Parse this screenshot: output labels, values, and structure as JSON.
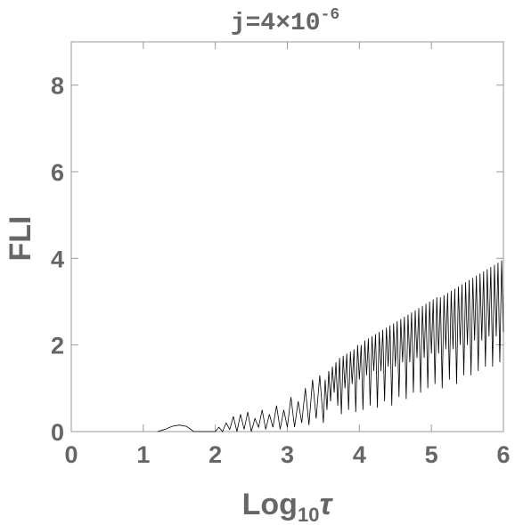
{
  "chart_data": {
    "type": "line",
    "title": "j=4×10",
    "title_superscript": "-6",
    "xlabel": "Log",
    "xlabel_subscript": "10",
    "xlabel_suffix": "τ",
    "ylabel": "FLI",
    "color": "#000000",
    "xlim": [
      0,
      6
    ],
    "ylim": [
      0,
      9
    ],
    "xticks": [
      0,
      1,
      2,
      3,
      4,
      5,
      6
    ],
    "yticks": [
      0,
      2,
      4,
      6,
      8
    ],
    "x": [
      1.2,
      1.3,
      1.4,
      1.5,
      1.6,
      1.7,
      1.8,
      1.9,
      2.0,
      2.05,
      2.1,
      2.15,
      2.2,
      2.25,
      2.3,
      2.35,
      2.4,
      2.45,
      2.5,
      2.55,
      2.6,
      2.65,
      2.7,
      2.75,
      2.8,
      2.85,
      2.9,
      2.95,
      3.0,
      3.05,
      3.1,
      3.15,
      3.2,
      3.25,
      3.3,
      3.35,
      3.4,
      3.45,
      3.5,
      3.525,
      3.55,
      3.575,
      3.6,
      3.625,
      3.65,
      3.675,
      3.7,
      3.725,
      3.75,
      3.775,
      3.8,
      3.825,
      3.85,
      3.875,
      3.9,
      3.925,
      3.95,
      3.975,
      4.0,
      4.025,
      4.05,
      4.075,
      4.1,
      4.125,
      4.15,
      4.175,
      4.2,
      4.225,
      4.25,
      4.275,
      4.3,
      4.325,
      4.35,
      4.375,
      4.4,
      4.425,
      4.45,
      4.475,
      4.5,
      4.525,
      4.55,
      4.575,
      4.6,
      4.625,
      4.65,
      4.675,
      4.7,
      4.725,
      4.75,
      4.775,
      4.8,
      4.825,
      4.85,
      4.875,
      4.9,
      4.925,
      4.95,
      4.975,
      5.0,
      5.025,
      5.05,
      5.075,
      5.1,
      5.125,
      5.15,
      5.175,
      5.2,
      5.225,
      5.25,
      5.275,
      5.3,
      5.325,
      5.35,
      5.375,
      5.4,
      5.425,
      5.45,
      5.475,
      5.5,
      5.525,
      5.55,
      5.575,
      5.6,
      5.625,
      5.65,
      5.675,
      5.7,
      5.725,
      5.75,
      5.775,
      5.8,
      5.825,
      5.85,
      5.875,
      5.9,
      5.925,
      5.95,
      5.975,
      6.0
    ],
    "values": [
      0,
      0.05,
      0.12,
      0.15,
      0.12,
      0,
      0,
      0,
      0,
      0.1,
      0,
      0.2,
      0.05,
      0.35,
      0,
      0.4,
      0.05,
      0.45,
      0,
      0.3,
      0.1,
      0.5,
      0.05,
      0.4,
      0.1,
      0.6,
      0.05,
      0.5,
      0.1,
      0.8,
      0.1,
      0.7,
      0.2,
      1.0,
      0.15,
      1.2,
      0.3,
      1.3,
      0.2,
      1.2,
      0.5,
      1.4,
      0.7,
      1.5,
      0.9,
      1.6,
      0.6,
      1.7,
      0.4,
      1.75,
      1.0,
      1.8,
      0.5,
      1.85,
      1.1,
      1.9,
      0.45,
      2.0,
      1.2,
      2.0,
      0.5,
      2.1,
      1.3,
      2.15,
      0.6,
      2.2,
      1.4,
      2.25,
      0.55,
      2.3,
      1.4,
      2.35,
      0.7,
      2.4,
      1.5,
      2.45,
      0.6,
      2.5,
      1.5,
      2.55,
      0.8,
      2.6,
      1.6,
      2.65,
      0.75,
      2.7,
      1.6,
      2.75,
      0.9,
      2.8,
      1.7,
      2.85,
      0.9,
      2.9,
      1.7,
      2.95,
      1.0,
      3.0,
      1.8,
      3.05,
      1.1,
      3.1,
      1.8,
      3.1,
      1.0,
      3.15,
      1.9,
      3.2,
      1.2,
      3.25,
      1.9,
      3.3,
      1.1,
      3.35,
      2.0,
      3.4,
      1.3,
      3.45,
      2.0,
      3.5,
      1.3,
      3.55,
      2.1,
      3.6,
      1.4,
      3.65,
      2.1,
      3.7,
      1.5,
      3.75,
      2.2,
      3.8,
      1.5,
      3.85,
      2.2,
      3.9,
      1.6,
      3.95,
      2.3
    ]
  }
}
